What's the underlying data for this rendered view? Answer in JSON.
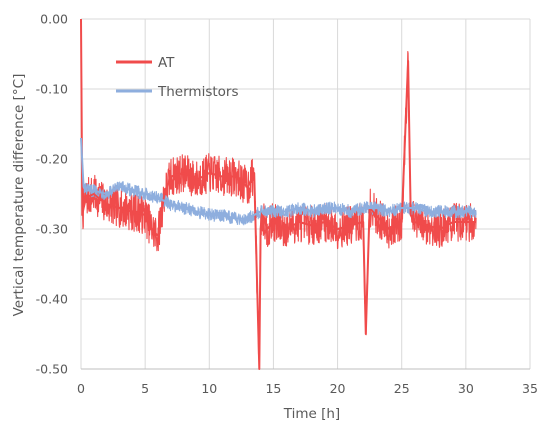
{
  "chart_data": {
    "type": "line",
    "xlabel": "Time [h]",
    "ylabel": "Vertical temperature difference [°C]",
    "xlim": [
      0,
      35
    ],
    "ylim": [
      -0.5,
      0.0
    ],
    "x_ticks": [
      "0",
      "5",
      "10",
      "15",
      "20",
      "25",
      "30",
      "35"
    ],
    "y_ticks": [
      "0.00",
      "-0.10",
      "-0.20",
      "-0.30",
      "-0.40",
      "-0.50"
    ],
    "grid": true,
    "legend_position": "top-left",
    "series": [
      {
        "name": "AT",
        "color": "#f04b4b",
        "x": [
          0,
          0.1,
          0.2,
          0.4,
          1,
          2,
          3,
          4,
          5,
          5.5,
          6,
          6.5,
          7,
          8,
          9,
          10,
          11,
          12,
          13,
          13.5,
          13.9,
          14,
          14.1,
          14.3,
          14.5,
          15,
          16,
          17,
          18,
          19,
          20,
          21,
          22,
          22.2,
          22.5,
          23,
          24,
          25,
          25.5,
          25.7,
          26,
          27,
          28,
          29,
          30,
          30.8
        ],
        "values": [
          0.0,
          -0.28,
          -0.27,
          -0.255,
          -0.25,
          -0.265,
          -0.27,
          -0.275,
          -0.28,
          -0.3,
          -0.31,
          -0.25,
          -0.225,
          -0.22,
          -0.23,
          -0.22,
          -0.225,
          -0.225,
          -0.24,
          -0.22,
          -0.5,
          -0.3,
          -0.28,
          -0.285,
          -0.3,
          -0.29,
          -0.3,
          -0.29,
          -0.295,
          -0.29,
          -0.3,
          -0.295,
          -0.29,
          -0.45,
          -0.27,
          -0.28,
          -0.3,
          -0.29,
          -0.06,
          -0.28,
          -0.29,
          -0.295,
          -0.3,
          -0.29,
          -0.29,
          -0.29
        ]
      },
      {
        "name": "Thermistors",
        "color": "#8eaede",
        "x": [
          0,
          0.2,
          0.5,
          1,
          2,
          3,
          4,
          5,
          6,
          7,
          8,
          9,
          10,
          11,
          12,
          13,
          14,
          15,
          16,
          17,
          18,
          19,
          20,
          21,
          22,
          23,
          24,
          25,
          26,
          27,
          28,
          29,
          30,
          30.8
        ],
        "values": [
          -0.17,
          -0.24,
          -0.245,
          -0.245,
          -0.25,
          -0.24,
          -0.245,
          -0.25,
          -0.255,
          -0.265,
          -0.27,
          -0.275,
          -0.28,
          -0.28,
          -0.285,
          -0.285,
          -0.275,
          -0.275,
          -0.275,
          -0.27,
          -0.275,
          -0.27,
          -0.27,
          -0.275,
          -0.27,
          -0.27,
          -0.275,
          -0.27,
          -0.27,
          -0.275,
          -0.275,
          -0.275,
          -0.275,
          -0.275
        ]
      }
    ]
  }
}
